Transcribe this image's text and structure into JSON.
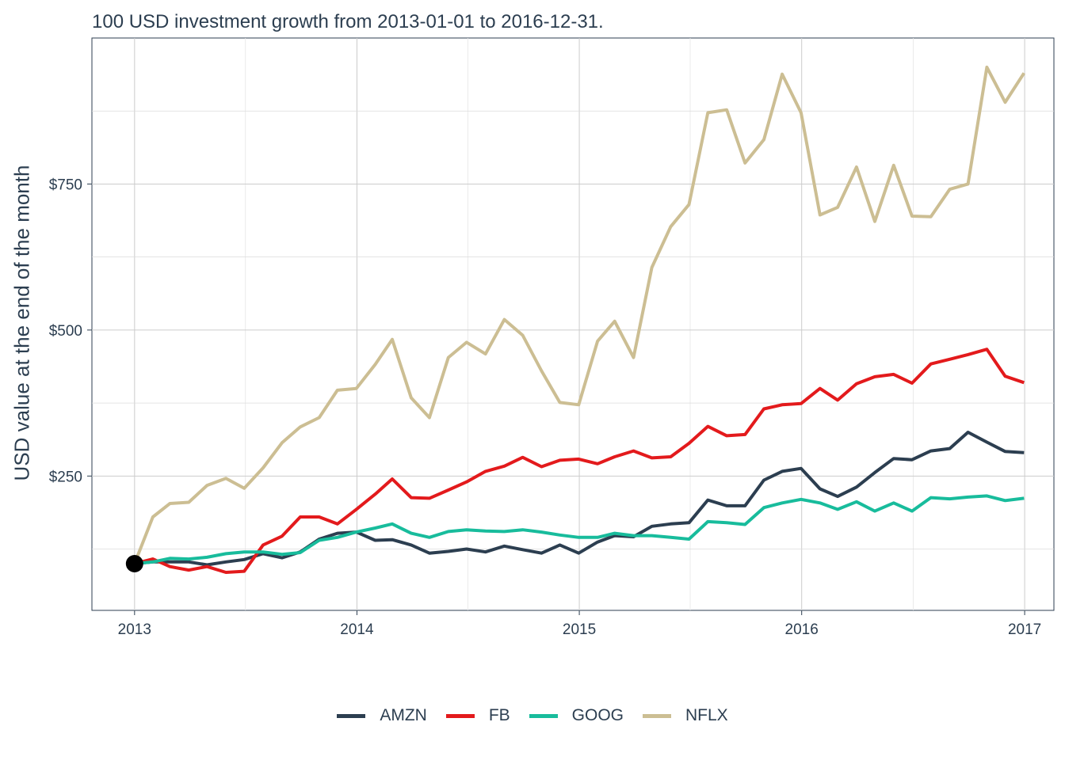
{
  "chart_data": {
    "type": "line",
    "title": "100 USD investment growth from 2013-01-01 to 2016-12-31.",
    "xlabel": "",
    "ylabel": "USD value at the end of the month",
    "x_ticks": [
      "2013",
      "2014",
      "2015",
      "2016",
      "2017"
    ],
    "y_ticks": [
      250,
      500,
      750
    ],
    "y_tick_labels": [
      "$250",
      "$500",
      "$750"
    ],
    "xlim": [
      "2012-10-23",
      "2017-02-18"
    ],
    "ylim": [
      20,
      1000
    ],
    "grid": true,
    "legend_position": "bottom",
    "start_point": {
      "x": "2013-01-01",
      "y": 100
    },
    "x": [
      "2013-01-31",
      "2013-02-28",
      "2013-03-31",
      "2013-04-30",
      "2013-05-31",
      "2013-06-30",
      "2013-07-31",
      "2013-08-31",
      "2013-09-30",
      "2013-10-31",
      "2013-11-30",
      "2013-12-31",
      "2014-01-31",
      "2014-02-28",
      "2014-03-31",
      "2014-04-30",
      "2014-05-31",
      "2014-06-30",
      "2014-07-31",
      "2014-08-31",
      "2014-09-30",
      "2014-10-31",
      "2014-11-30",
      "2014-12-31",
      "2015-01-31",
      "2015-02-28",
      "2015-03-31",
      "2015-04-30",
      "2015-05-31",
      "2015-06-30",
      "2015-07-31",
      "2015-08-31",
      "2015-09-30",
      "2015-10-31",
      "2015-11-30",
      "2015-12-31",
      "2016-01-31",
      "2016-02-29",
      "2016-03-31",
      "2016-04-30",
      "2016-05-31",
      "2016-06-30",
      "2016-07-31",
      "2016-08-31",
      "2016-09-30",
      "2016-10-31",
      "2016-11-30",
      "2016-12-31"
    ],
    "series": [
      {
        "name": "AMZN",
        "color": "#2c3e50",
        "values": [
          103,
          103,
          103,
          98,
          103,
          107,
          117,
          110,
          120,
          142,
          152,
          154,
          140,
          141,
          132,
          118,
          121,
          125,
          120,
          130,
          124,
          118,
          132,
          118,
          137,
          148,
          146,
          164,
          168,
          170,
          209,
          199,
          199,
          243,
          258,
          263,
          228,
          215,
          231,
          256,
          280,
          278,
          293,
          297,
          325,
          308,
          292,
          290
        ]
      },
      {
        "name": "FB",
        "color": "#e31a1c",
        "values": [
          108,
          95,
          89,
          95,
          85,
          87,
          132,
          147,
          180,
          180,
          168,
          193,
          219,
          245,
          213,
          212,
          226,
          240,
          258,
          267,
          282,
          266,
          277,
          279,
          271,
          283,
          293,
          281,
          283,
          306,
          335,
          319,
          321,
          365,
          372,
          374,
          400,
          380,
          408,
          420,
          424,
          409,
          442,
          450,
          458,
          467,
          421,
          410
        ]
      },
      {
        "name": "GOOG",
        "color": "#18bc9c",
        "values": [
          103,
          109,
          108,
          111,
          117,
          120,
          120,
          116,
          119,
          140,
          145,
          154,
          161,
          168,
          152,
          145,
          155,
          158,
          156,
          155,
          158,
          154,
          149,
          145,
          145,
          152,
          148,
          148,
          145,
          142,
          172,
          170,
          167,
          196,
          204,
          210,
          204,
          193,
          206,
          190,
          204,
          190,
          213,
          211,
          214,
          216,
          208,
          212
        ]
      },
      {
        "name": "NFLX",
        "color": "#ccbe93",
        "values": [
          180,
          203,
          205,
          234,
          246,
          229,
          264,
          307,
          334,
          350,
          397,
          400,
          441,
          484,
          384,
          350,
          453,
          479,
          459,
          518,
          491,
          430,
          376,
          372,
          481,
          515,
          453,
          607,
          677,
          715,
          872,
          877,
          786,
          826,
          938,
          872,
          697,
          710,
          779,
          686,
          782,
          695,
          694,
          741,
          750,
          950,
          890,
          940
        ]
      }
    ]
  }
}
